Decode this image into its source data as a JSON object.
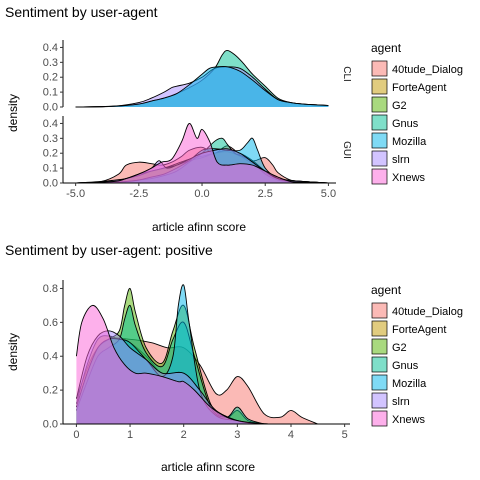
{
  "chart_data": [
    {
      "type": "area",
      "title": "Sentiment by user-agent",
      "xlabel": "article afinn score",
      "ylabel": "density",
      "xlim": [
        -5.5,
        5.3
      ],
      "ylim": [
        0,
        0.45
      ],
      "x_ticks": [
        -5.0,
        -2.5,
        0.0,
        2.5,
        5.0
      ],
      "x_tick_labels": [
        "-5.0",
        "-2.5",
        "0.0",
        "2.5",
        "5.0"
      ],
      "y_ticks": [
        0.0,
        0.1,
        0.2,
        0.3,
        0.4
      ],
      "y_tick_labels": [
        "0.0",
        "0.1",
        "0.2",
        "0.3",
        "0.4"
      ],
      "grid": false,
      "legend_position": "right",
      "legend_title": "agent",
      "legend": [
        "40tude_Dialog",
        "ForteAgent",
        "G2",
        "Gnus",
        "Mozilla",
        "slrn",
        "Xnews"
      ],
      "facets": [
        {
          "strip": "CLI",
          "series": [
            {
              "name": "Gnus",
              "x": [
                -5.0,
                -3.5,
                -2.5,
                -2.0,
                -1.5,
                -1.0,
                -0.5,
                0.0,
                0.5,
                0.8,
                1.0,
                1.3,
                1.6,
                2.0,
                2.5,
                3.0,
                3.5,
                4.0,
                5.0
              ],
              "values": [
                0.0,
                0.005,
                0.02,
                0.04,
                0.06,
                0.09,
                0.13,
                0.18,
                0.26,
                0.35,
                0.38,
                0.35,
                0.3,
                0.22,
                0.14,
                0.06,
                0.03,
                0.02,
                0.01
              ]
            },
            {
              "name": "slrn",
              "x": [
                -5.0,
                -3.5,
                -2.5,
                -2.0,
                -1.5,
                -1.2,
                -1.0,
                -0.5,
                0.0,
                0.5,
                1.0,
                1.5,
                2.0,
                2.5,
                3.0,
                3.5,
                4.0,
                5.0
              ],
              "values": [
                0.0,
                0.005,
                0.03,
                0.06,
                0.1,
                0.13,
                0.14,
                0.16,
                0.2,
                0.26,
                0.27,
                0.26,
                0.2,
                0.12,
                0.05,
                0.03,
                0.02,
                0.01
              ]
            },
            {
              "name": "Mozilla",
              "x": [
                -5.0,
                -3.5,
                -2.5,
                -2.0,
                -1.5,
                -1.0,
                -0.5,
                0.0,
                0.3,
                0.6,
                1.0,
                1.5,
                2.0,
                2.5,
                3.0,
                3.5,
                4.0,
                5.0
              ],
              "values": [
                0.0,
                0.005,
                0.02,
                0.04,
                0.06,
                0.09,
                0.15,
                0.22,
                0.26,
                0.27,
                0.27,
                0.24,
                0.18,
                0.11,
                0.05,
                0.03,
                0.02,
                0.01
              ]
            }
          ]
        },
        {
          "strip": "GUI",
          "series": [
            {
              "name": "40tude_Dialog",
              "x": [
                -5.0,
                -4.0,
                -3.3,
                -3.0,
                -2.5,
                -2.0,
                -1.6,
                -1.2,
                -0.8,
                -0.5,
                0.0,
                0.5,
                1.0,
                1.5,
                1.8,
                2.1,
                2.5,
                2.8,
                3.0,
                3.5,
                4.0,
                5.0
              ],
              "values": [
                0.0,
                0.01,
                0.06,
                0.12,
                0.14,
                0.13,
                0.12,
                0.14,
                0.18,
                0.22,
                0.24,
                0.2,
                0.25,
                0.19,
                0.15,
                0.15,
                0.17,
                0.12,
                0.07,
                0.02,
                0.01,
                0.0
              ]
            },
            {
              "name": "ForteAgent",
              "x": [
                -5.0,
                -3.5,
                -3.0,
                -2.5,
                -2.0,
                -1.5,
                -1.0,
                -0.5,
                0.0,
                0.5,
                1.0,
                1.5,
                2.0,
                2.5,
                3.0,
                4.0,
                5.0
              ],
              "values": [
                0.0,
                0.01,
                0.03,
                0.06,
                0.08,
                0.1,
                0.13,
                0.16,
                0.18,
                0.2,
                0.21,
                0.18,
                0.13,
                0.07,
                0.03,
                0.01,
                0.0
              ]
            },
            {
              "name": "G2",
              "x": [
                -5.0,
                -3.5,
                -3.0,
                -2.5,
                -2.0,
                -1.5,
                -1.0,
                -0.5,
                0.0,
                0.5,
                1.0,
                1.5,
                2.0,
                2.5,
                3.0,
                4.0,
                5.0
              ],
              "values": [
                0.0,
                0.01,
                0.03,
                0.05,
                0.08,
                0.1,
                0.12,
                0.15,
                0.17,
                0.2,
                0.22,
                0.2,
                0.15,
                0.08,
                0.03,
                0.01,
                0.0
              ]
            },
            {
              "name": "Gnus",
              "x": [
                -5.0,
                -3.5,
                -3.0,
                -2.5,
                -2.0,
                -1.5,
                -1.0,
                -0.5,
                0.0,
                0.5,
                0.8,
                1.0,
                1.3,
                1.6,
                2.0,
                2.5,
                3.0,
                3.5,
                4.0,
                5.0
              ],
              "values": [
                0.0,
                0.005,
                0.01,
                0.02,
                0.03,
                0.05,
                0.08,
                0.14,
                0.2,
                0.28,
                0.3,
                0.26,
                0.2,
                0.18,
                0.14,
                0.06,
                0.02,
                0.01,
                0.005,
                0.0
              ]
            },
            {
              "name": "Mozilla",
              "x": [
                -5.0,
                -3.5,
                -3.0,
                -2.5,
                -2.0,
                -1.5,
                -1.0,
                -0.5,
                0.0,
                0.5,
                1.0,
                1.5,
                1.8,
                2.0,
                2.2,
                2.5,
                3.0,
                3.5,
                4.0,
                5.0
              ],
              "values": [
                0.0,
                0.005,
                0.01,
                0.02,
                0.04,
                0.06,
                0.1,
                0.15,
                0.22,
                0.23,
                0.22,
                0.22,
                0.27,
                0.3,
                0.22,
                0.1,
                0.03,
                0.01,
                0.005,
                0.0
              ]
            },
            {
              "name": "slrn",
              "x": [
                -5.0,
                -4.0,
                -3.0,
                -2.5,
                -2.0,
                -1.7,
                -1.4,
                -1.0,
                -0.5,
                0.0,
                0.5,
                1.0,
                1.5,
                2.0,
                2.5,
                3.0,
                4.0,
                5.0
              ],
              "values": [
                0.0,
                0.01,
                0.03,
                0.06,
                0.1,
                0.15,
                0.1,
                0.12,
                0.16,
                0.2,
                0.22,
                0.23,
                0.2,
                0.14,
                0.08,
                0.03,
                0.01,
                0.0
              ]
            },
            {
              "name": "Xnews",
              "x": [
                -5.0,
                -3.5,
                -3.0,
                -2.5,
                -2.0,
                -1.6,
                -1.2,
                -0.8,
                -0.5,
                -0.2,
                0.0,
                0.3,
                0.6,
                1.0,
                1.5,
                2.0,
                2.5,
                3.0,
                3.5,
                4.0,
                5.0
              ],
              "values": [
                0.0,
                0.01,
                0.03,
                0.06,
                0.1,
                0.14,
                0.16,
                0.28,
                0.4,
                0.3,
                0.36,
                0.28,
                0.14,
                0.12,
                0.13,
                0.12,
                0.08,
                0.04,
                0.01,
                0.005,
                0.0
              ]
            }
          ]
        }
      ]
    },
    {
      "type": "area",
      "title": "Sentiment by user-agent: positive",
      "xlabel": "article afinn score",
      "ylabel": "density",
      "xlim": [
        -0.25,
        5.1
      ],
      "ylim": [
        0,
        0.85
      ],
      "x_ticks": [
        0,
        1,
        2,
        3,
        4,
        5
      ],
      "x_tick_labels": [
        "0",
        "1",
        "2",
        "3",
        "4",
        "5"
      ],
      "y_ticks": [
        0.0,
        0.2,
        0.4,
        0.6,
        0.8
      ],
      "y_tick_labels": [
        "0.0",
        "0.2",
        "0.4",
        "0.6",
        "0.8"
      ],
      "grid": false,
      "legend_position": "right",
      "legend_title": "agent",
      "legend": [
        "40tude_Dialog",
        "ForteAgent",
        "G2",
        "Gnus",
        "Mozilla",
        "slrn",
        "Xnews"
      ],
      "series": [
        {
          "name": "40tude_Dialog",
          "x": [
            0.0,
            0.3,
            0.6,
            1.0,
            1.4,
            1.7,
            2.0,
            2.3,
            2.6,
            2.8,
            3.0,
            3.2,
            3.5,
            3.8,
            4.0,
            4.2,
            4.5
          ],
          "values": [
            0.15,
            0.4,
            0.5,
            0.5,
            0.48,
            0.45,
            0.45,
            0.35,
            0.18,
            0.2,
            0.28,
            0.22,
            0.06,
            0.04,
            0.08,
            0.04,
            0.0
          ]
        },
        {
          "name": "ForteAgent",
          "x": [
            0.0,
            0.2,
            0.4,
            0.6,
            0.8,
            1.0,
            1.3,
            1.6,
            2.0,
            2.3,
            2.6,
            3.0,
            3.3,
            3.6
          ],
          "values": [
            0.12,
            0.35,
            0.5,
            0.52,
            0.5,
            0.48,
            0.4,
            0.3,
            0.3,
            0.2,
            0.08,
            0.02,
            0.005,
            0.0
          ]
        },
        {
          "name": "G2",
          "x": [
            0.0,
            0.2,
            0.4,
            0.6,
            0.8,
            0.9,
            1.0,
            1.1,
            1.3,
            1.6,
            1.8,
            2.0,
            2.2,
            2.5,
            2.8,
            3.0,
            3.2,
            3.5
          ],
          "values": [
            0.1,
            0.3,
            0.45,
            0.5,
            0.55,
            0.7,
            0.8,
            0.66,
            0.45,
            0.36,
            0.55,
            0.7,
            0.45,
            0.12,
            0.04,
            0.08,
            0.02,
            0.0
          ]
        },
        {
          "name": "Gnus",
          "x": [
            0.0,
            0.2,
            0.4,
            0.6,
            0.8,
            0.9,
            1.0,
            1.1,
            1.3,
            1.6,
            1.8,
            2.0,
            2.2,
            2.5,
            2.8,
            3.0,
            3.2,
            3.5
          ],
          "values": [
            0.08,
            0.25,
            0.4,
            0.45,
            0.5,
            0.62,
            0.7,
            0.58,
            0.42,
            0.34,
            0.5,
            0.6,
            0.4,
            0.1,
            0.04,
            0.1,
            0.03,
            0.0
          ]
        },
        {
          "name": "Mozilla",
          "x": [
            0.0,
            0.2,
            0.4,
            0.6,
            0.8,
            1.0,
            1.3,
            1.6,
            1.8,
            1.9,
            2.0,
            2.1,
            2.3,
            2.6,
            3.0,
            3.3
          ],
          "values": [
            0.1,
            0.3,
            0.45,
            0.5,
            0.5,
            0.48,
            0.38,
            0.28,
            0.4,
            0.7,
            0.82,
            0.6,
            0.2,
            0.05,
            0.02,
            0.0
          ]
        },
        {
          "name": "slrn",
          "x": [
            0.0,
            0.2,
            0.4,
            0.6,
            0.8,
            1.0,
            1.3,
            1.6,
            2.0,
            2.3,
            2.6,
            3.0,
            3.3,
            3.6
          ],
          "values": [
            0.15,
            0.4,
            0.52,
            0.55,
            0.52,
            0.45,
            0.38,
            0.3,
            0.3,
            0.2,
            0.08,
            0.02,
            0.005,
            0.0
          ]
        },
        {
          "name": "Xnews",
          "x": [
            0.0,
            0.1,
            0.3,
            0.5,
            0.7,
            0.9,
            1.1,
            1.3,
            1.6,
            1.9,
            2.0,
            2.2,
            2.5,
            2.8,
            3.0,
            3.2,
            3.5
          ],
          "values": [
            0.4,
            0.6,
            0.7,
            0.62,
            0.45,
            0.35,
            0.3,
            0.3,
            0.28,
            0.25,
            0.25,
            0.2,
            0.1,
            0.04,
            0.02,
            0.01,
            0.0
          ]
        }
      ]
    }
  ],
  "colors": {
    "40tude_Dialog": "#F8766D",
    "ForteAgent": "#C49A00",
    "G2": "#53B400",
    "Gnus": "#00C094",
    "Mozilla": "#00B6EB",
    "slrn": "#A58AFF",
    "Xnews": "#FB61D7"
  }
}
